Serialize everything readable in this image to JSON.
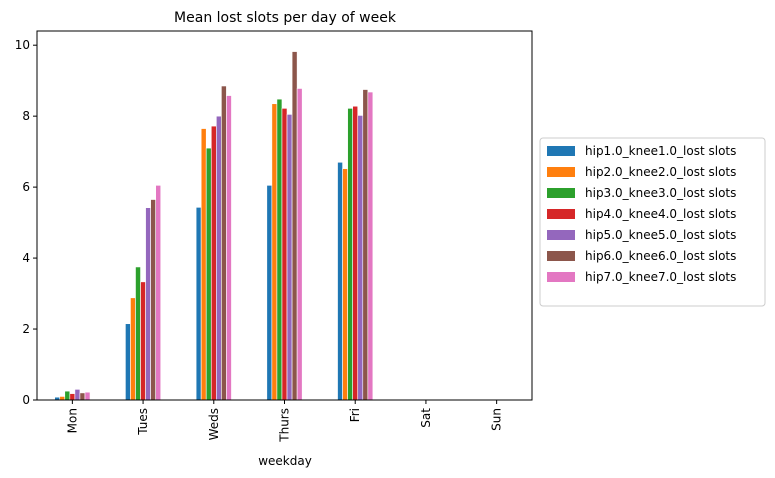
{
  "chart_data": {
    "type": "bar",
    "title": "Mean lost slots per day of week",
    "xlabel": "weekday",
    "ylabel": "",
    "categories": [
      "Mon",
      "Tues",
      "Weds",
      "Thurs",
      "Fri",
      "Sat",
      "Sun"
    ],
    "ylim": [
      0,
      10.4
    ],
    "yticks": [
      0,
      2,
      4,
      6,
      8,
      10
    ],
    "grid": false,
    "legend_position": "right-outside",
    "series": [
      {
        "name": "hip1.0_knee1.0_lost slots",
        "color": "#1f77b4",
        "values": [
          0.08,
          2.15,
          5.43,
          6.05,
          6.7,
          0,
          0
        ]
      },
      {
        "name": "hip2.0_knee2.0_lost slots",
        "color": "#ff7f0e",
        "values": [
          0.1,
          2.88,
          7.65,
          8.35,
          6.52,
          0,
          0
        ]
      },
      {
        "name": "hip3.0_knee3.0_lost slots",
        "color": "#2ca02c",
        "values": [
          0.25,
          3.75,
          7.1,
          8.48,
          8.22,
          0,
          0
        ]
      },
      {
        "name": "hip4.0_knee4.0_lost slots",
        "color": "#d62728",
        "values": [
          0.18,
          3.33,
          7.72,
          8.22,
          8.28,
          0,
          0
        ]
      },
      {
        "name": "hip5.0_knee5.0_lost slots",
        "color": "#9467bd",
        "values": [
          0.3,
          5.42,
          8.0,
          8.05,
          8.02,
          0,
          0
        ]
      },
      {
        "name": "hip6.0_knee6.0_lost slots",
        "color": "#8c564b",
        "values": [
          0.2,
          5.65,
          8.85,
          9.82,
          8.75,
          0,
          0
        ]
      },
      {
        "name": "hip7.0_knee7.0_lost slots",
        "color": "#e377c2",
        "values": [
          0.22,
          6.05,
          8.58,
          8.78,
          8.68,
          0,
          0
        ]
      }
    ]
  }
}
